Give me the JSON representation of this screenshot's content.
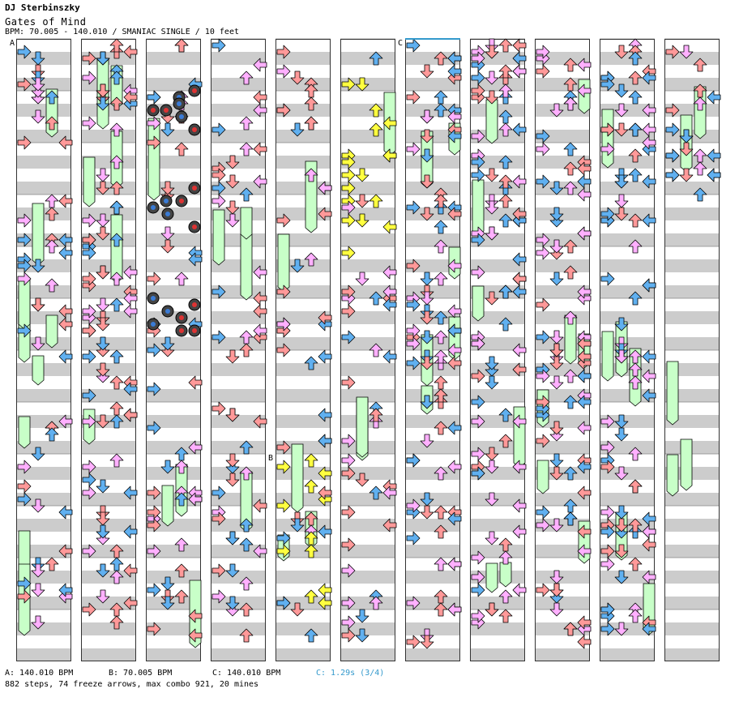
{
  "header": {
    "artist": "DJ Sterbinszky",
    "song_title": "Gates of Mind",
    "bpm_line": "BPM: 70.005 - 140.010 / SMANIAC SINGLE / 10 feet"
  },
  "markers": {
    "a": "A",
    "b": "B",
    "c": "C"
  },
  "footer": {
    "bpm_a": "A: 140.010 BPM",
    "bpm_b": "B: 70.005 BPM",
    "bpm_c": "C: 140.010 BPM",
    "stop_c": "C: 1.29s (3/4)",
    "stats": "882 steps, 74 freeze arrows, max combo 921, 20 mines"
  },
  "colors": {
    "quarter": "#ff9999",
    "eighth": "#60b0f0",
    "sixteenth": "#ffb0ff",
    "yellow": "#ffff40",
    "freeze": "#c8ffc8",
    "stripe": "#cccccc",
    "stop_text": "#3399cc"
  },
  "icons": {
    "arrow": "arrow-icon",
    "freeze": "freeze-arrow-icon",
    "mine": "mine-icon"
  }
}
